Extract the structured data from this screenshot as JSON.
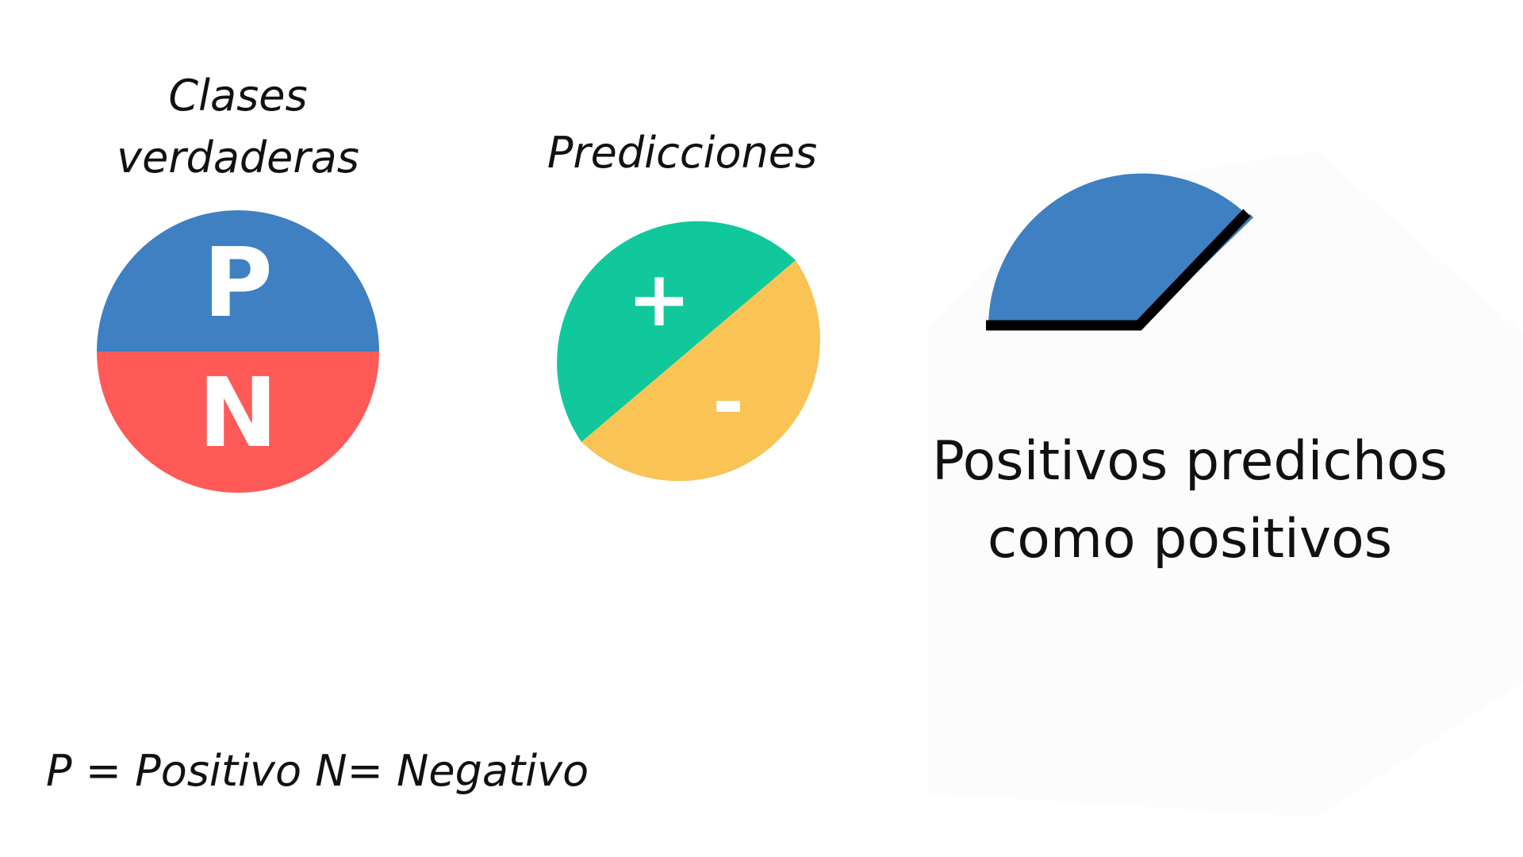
{
  "true_classes": {
    "title_line1": "Clases",
    "title_line2": "verdaderas",
    "positive_letter": "P",
    "negative_letter": "N"
  },
  "predictions": {
    "title": "Predicciones",
    "positive_symbol": "+",
    "negative_symbol": "-"
  },
  "result": {
    "line1": "Positivos predichos",
    "line2": "como positivos"
  },
  "legend": {
    "text": "P = Positivo N= Negativo"
  },
  "colors": {
    "positive_class": "#3f80c2",
    "negative_class": "#ff5a58",
    "positive_prediction": "#10c89c",
    "negative_prediction": "#f9c356",
    "outline": "#000000",
    "background_panel": "#fcfcfc"
  }
}
